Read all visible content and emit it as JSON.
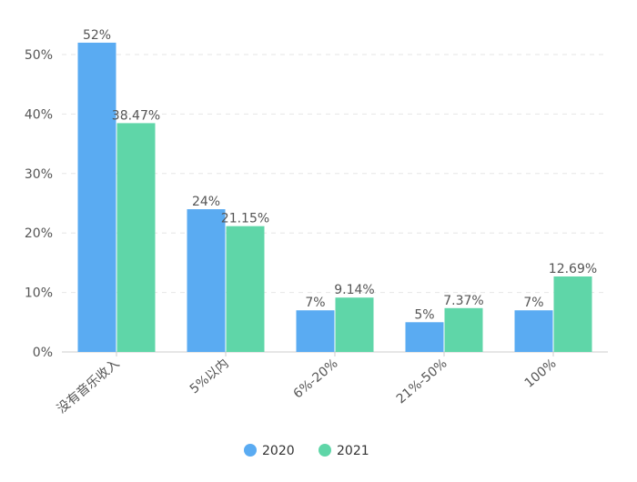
{
  "chart_data": {
    "type": "bar",
    "categories": [
      "没有音乐收入",
      "5%以内",
      "6%-20%",
      "21%-50%",
      "100%"
    ],
    "series": [
      {
        "name": "2020",
        "values": [
          52,
          24,
          7,
          5,
          7
        ],
        "labels": [
          "52%",
          "24%",
          "7%",
          "5%",
          "7%"
        ],
        "color": "#5aabf2"
      },
      {
        "name": "2021",
        "values": [
          38.47,
          21.15,
          9.14,
          7.37,
          12.69
        ],
        "labels": [
          "38.47%",
          "21.15%",
          "9.14%",
          "7.37%",
          "12.69%"
        ],
        "color": "#5fd6a8"
      }
    ],
    "y_ticks": [
      "0%",
      "10%",
      "20%",
      "30%",
      "40%",
      "50%"
    ],
    "ylim": [
      0,
      50
    ],
    "grid": true,
    "legend": "bottom-center"
  }
}
